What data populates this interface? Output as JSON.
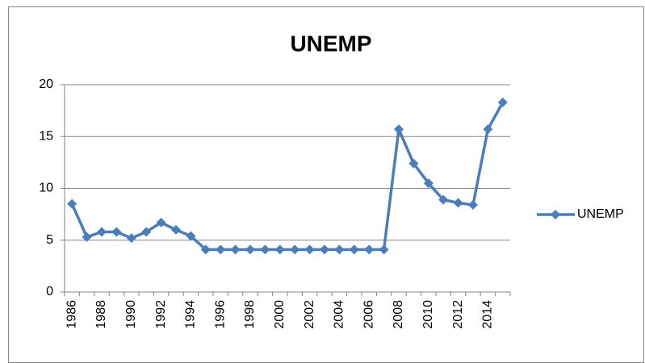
{
  "chart_data": {
    "type": "line",
    "title": "UNEMP",
    "categories": [
      "1986",
      null,
      "1988",
      null,
      "1990",
      null,
      "1992",
      null,
      "1994",
      null,
      "1996",
      null,
      "1998",
      null,
      "2000",
      null,
      "2002",
      null,
      "2004",
      null,
      "2006",
      null,
      "2008",
      null,
      "2010",
      null,
      "2012",
      null,
      "2014",
      null
    ],
    "series": [
      {
        "name": "UNEMP",
        "color": "#4a7ebb",
        "values": [
          8.5,
          5.3,
          5.8,
          5.8,
          5.2,
          5.8,
          6.7,
          6.0,
          5.4,
          4.1,
          4.1,
          4.1,
          4.1,
          4.1,
          4.1,
          4.1,
          4.1,
          4.1,
          4.1,
          4.1,
          4.1,
          4.1,
          15.7,
          12.4,
          10.5,
          8.9,
          8.6,
          8.4,
          15.7,
          18.3
        ]
      }
    ],
    "ylim": [
      0,
      20
    ],
    "yticks": [
      0,
      5,
      10,
      15,
      20
    ],
    "grid": true,
    "legend": "right"
  }
}
